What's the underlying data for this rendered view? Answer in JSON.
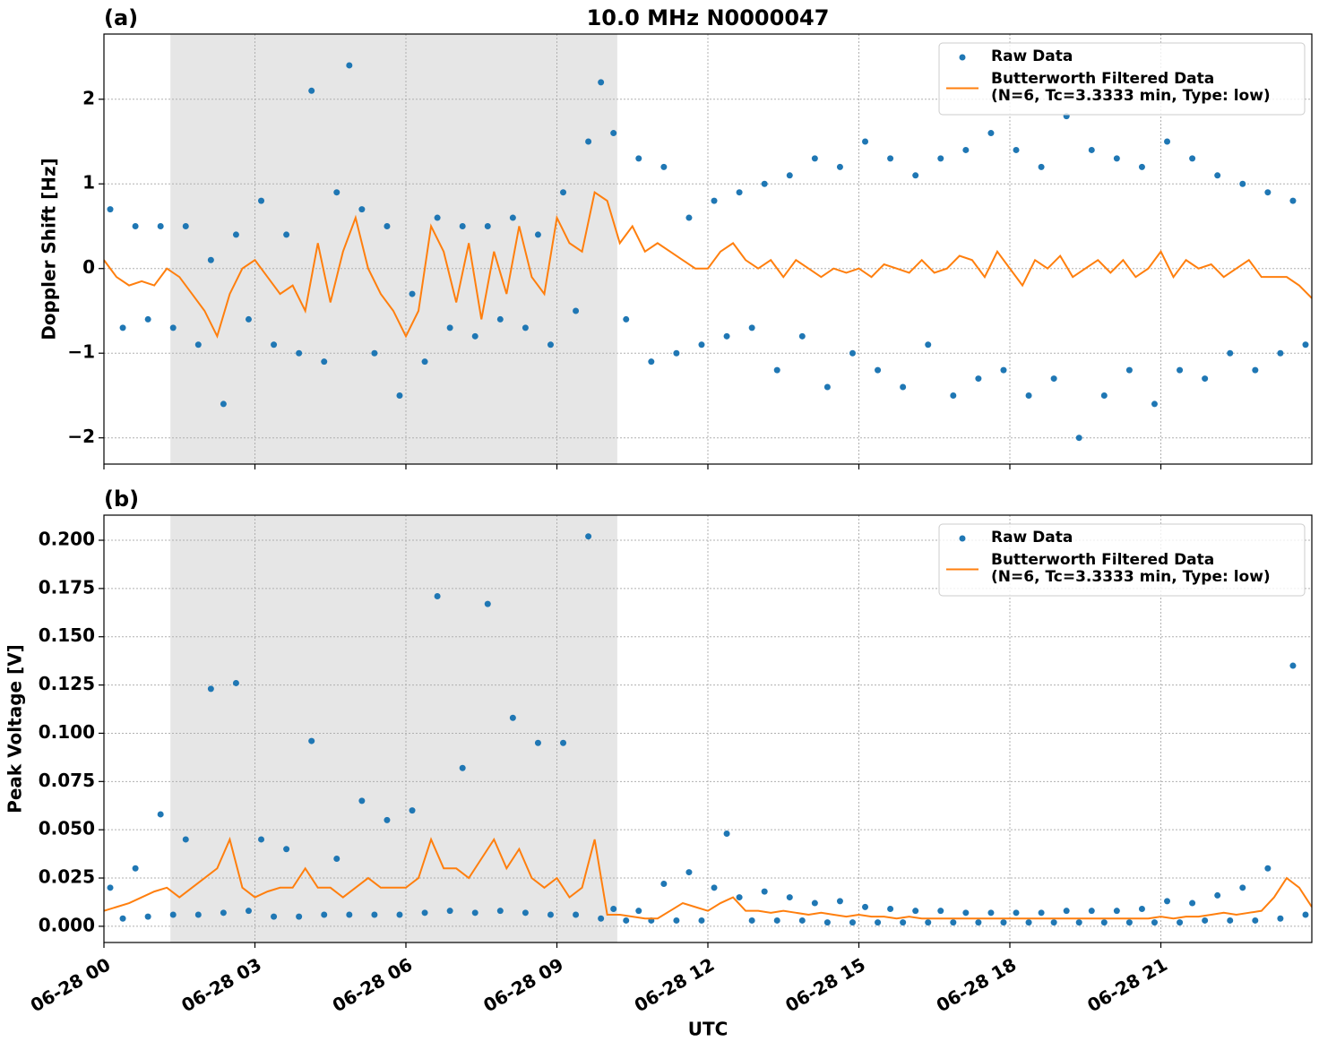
{
  "chart_data": [
    {
      "type": "line",
      "title": "10.0 MHz N0000047",
      "panel_label": "(a)",
      "ylabel": "Doppler Shift [Hz]",
      "xlim": [
        0,
        24
      ],
      "xticks": [
        0,
        3,
        6,
        9,
        12,
        15,
        18,
        21
      ],
      "ylim": [
        -2.31,
        2.77
      ],
      "yticks": [
        {
          "value": -2,
          "label": "−2"
        },
        {
          "value": -1,
          "label": "−1"
        },
        0,
        1,
        2
      ],
      "grid": true,
      "legend": "upper right",
      "shaded_span": [
        1.32,
        10.2
      ],
      "series": [
        {
          "name": "Raw Data",
          "type": "scatter",
          "color": "#1f77b4",
          "x": [
            0.125,
            0.375,
            0.625,
            0.875,
            1.125,
            1.375,
            1.625,
            1.875,
            2.125,
            2.375,
            2.625,
            2.875,
            3.125,
            3.375,
            3.625,
            3.875,
            4.125,
            4.375,
            4.625,
            4.875,
            5.125,
            5.375,
            5.625,
            5.875,
            6.125,
            6.375,
            6.625,
            6.875,
            7.125,
            7.375,
            7.625,
            7.875,
            8.125,
            8.375,
            8.625,
            8.875,
            9.125,
            9.375,
            9.625,
            9.875,
            10.125,
            10.375,
            10.625,
            10.875,
            11.125,
            11.375,
            11.625,
            11.875,
            12.125,
            12.375,
            12.625,
            12.875,
            13.125,
            13.375,
            13.625,
            13.875,
            14.125,
            14.375,
            14.625,
            14.875,
            15.125,
            15.375,
            15.625,
            15.875,
            16.125,
            16.375,
            16.625,
            16.875,
            17.125,
            17.375,
            17.625,
            17.875,
            18.125,
            18.375,
            18.625,
            18.875,
            19.125,
            19.375,
            19.625,
            19.875,
            20.125,
            20.375,
            20.625,
            20.875,
            21.125,
            21.375,
            21.625,
            21.875,
            22.125,
            22.375,
            22.625,
            22.875,
            23.125,
            23.375,
            23.625,
            23.875
          ],
          "values": [
            0.7,
            -0.7,
            0.5,
            -0.6,
            0.5,
            -0.7,
            0.5,
            -0.9,
            0.1,
            -1.6,
            0.4,
            -0.6,
            0.8,
            -0.9,
            0.4,
            -1.0,
            2.1,
            -1.1,
            0.9,
            2.4,
            0.7,
            -1.0,
            0.5,
            -1.5,
            -0.3,
            -1.1,
            0.6,
            -0.7,
            0.5,
            -0.8,
            0.5,
            -0.6,
            0.6,
            -0.7,
            0.4,
            -0.9,
            0.9,
            -0.5,
            1.5,
            2.2,
            1.6,
            -0.6,
            1.3,
            -1.1,
            1.2,
            -1.0,
            0.6,
            -0.9,
            0.8,
            -0.8,
            0.9,
            -0.7,
            1.0,
            -1.2,
            1.1,
            -0.8,
            1.3,
            -1.4,
            1.2,
            -1.0,
            1.5,
            -1.2,
            1.3,
            -1.4,
            1.1,
            -0.9,
            1.3,
            -1.5,
            1.4,
            -1.3,
            1.6,
            -1.2,
            1.4,
            -1.5,
            1.2,
            -1.3,
            1.8,
            -2.0,
            1.4,
            -1.5,
            1.3,
            -1.2,
            1.2,
            -1.6,
            1.5,
            -1.2,
            1.3,
            -1.3,
            1.1,
            -1.0,
            1.0,
            -1.2,
            0.9,
            -1.0,
            0.8,
            -0.9
          ]
        },
        {
          "name": "Butterworth Filtered Data\n(N=6, Tc=3.3333 min, Type: low)",
          "type": "line",
          "color": "#ff7f0e",
          "x": [
            0,
            0.25,
            0.5,
            0.75,
            1,
            1.25,
            1.5,
            1.75,
            2,
            2.25,
            2.5,
            2.75,
            3,
            3.25,
            3.5,
            3.75,
            4,
            4.25,
            4.5,
            4.75,
            5,
            5.25,
            5.5,
            5.75,
            6,
            6.25,
            6.5,
            6.75,
            7,
            7.25,
            7.5,
            7.75,
            8,
            8.25,
            8.5,
            8.75,
            9,
            9.25,
            9.5,
            9.75,
            10,
            10.25,
            10.5,
            10.75,
            11,
            11.25,
            11.5,
            11.75,
            12,
            12.25,
            12.5,
            12.75,
            13,
            13.25,
            13.5,
            13.75,
            14,
            14.25,
            14.5,
            14.75,
            15,
            15.25,
            15.5,
            15.75,
            16,
            16.25,
            16.5,
            16.75,
            17,
            17.25,
            17.5,
            17.75,
            18,
            18.25,
            18.5,
            18.75,
            19,
            19.25,
            19.5,
            19.75,
            20,
            20.25,
            20.5,
            20.75,
            21,
            21.25,
            21.5,
            21.75,
            22,
            22.25,
            22.5,
            22.75,
            23,
            23.25,
            23.5,
            23.75,
            24
          ],
          "values": [
            0.1,
            -0.1,
            -0.2,
            -0.15,
            -0.2,
            0.0,
            -0.1,
            -0.3,
            -0.5,
            -0.8,
            -0.3,
            0.0,
            0.1,
            -0.1,
            -0.3,
            -0.2,
            -0.5,
            0.3,
            -0.4,
            0.2,
            0.6,
            0.0,
            -0.3,
            -0.5,
            -0.8,
            -0.5,
            0.5,
            0.2,
            -0.4,
            0.3,
            -0.6,
            0.2,
            -0.3,
            0.5,
            -0.1,
            -0.3,
            0.6,
            0.3,
            0.2,
            0.9,
            0.8,
            0.3,
            0.5,
            0.2,
            0.3,
            0.2,
            0.1,
            0.0,
            0.0,
            0.2,
            0.3,
            0.1,
            0.0,
            0.1,
            -0.1,
            0.1,
            0.0,
            -0.1,
            0.0,
            -0.05,
            0.0,
            -0.1,
            0.05,
            0.0,
            -0.05,
            0.1,
            -0.05,
            0.0,
            0.15,
            0.1,
            -0.1,
            0.2,
            0.0,
            -0.2,
            0.1,
            0.0,
            0.15,
            -0.1,
            0.0,
            0.1,
            -0.05,
            0.1,
            -0.1,
            0.0,
            0.2,
            -0.1,
            0.1,
            0.0,
            0.05,
            -0.1,
            0.0,
            0.1,
            -0.1,
            -0.1,
            -0.1,
            -0.2,
            -0.35
          ]
        }
      ]
    },
    {
      "type": "line",
      "panel_label": "(b)",
      "ylabel": "Peak Voltage [V]",
      "xlabel": "UTC",
      "xlim": [
        0,
        24
      ],
      "xticks": [
        {
          "value": 0,
          "label": "06-28 00"
        },
        {
          "value": 3,
          "label": "06-28 03"
        },
        {
          "value": 6,
          "label": "06-28 06"
        },
        {
          "value": 9,
          "label": "06-28 09"
        },
        {
          "value": 12,
          "label": "06-28 12"
        },
        {
          "value": 15,
          "label": "06-28 15"
        },
        {
          "value": 18,
          "label": "06-28 18"
        },
        {
          "value": 21,
          "label": "06-28 21"
        }
      ],
      "ylim": [
        -0.0084,
        0.213
      ],
      "yticks": [
        {
          "value": 0,
          "label": "0.000"
        },
        {
          "value": 0.025,
          "label": "0.025"
        },
        {
          "value": 0.05,
          "label": "0.050"
        },
        {
          "value": 0.075,
          "label": "0.075"
        },
        {
          "value": 0.1,
          "label": "0.100"
        },
        {
          "value": 0.125,
          "label": "0.125"
        },
        {
          "value": 0.15,
          "label": "0.150"
        },
        {
          "value": 0.175,
          "label": "0.175"
        },
        {
          "value": 0.2,
          "label": "0.200"
        }
      ],
      "grid": true,
      "legend": "upper right",
      "shaded_span": [
        1.32,
        10.2
      ],
      "series": [
        {
          "name": "Raw Data",
          "type": "scatter",
          "color": "#1f77b4",
          "x": [
            0.125,
            0.375,
            0.625,
            0.875,
            1.125,
            1.375,
            1.625,
            1.875,
            2.125,
            2.375,
            2.625,
            2.875,
            3.125,
            3.375,
            3.625,
            3.875,
            4.125,
            4.375,
            4.625,
            4.875,
            5.125,
            5.375,
            5.625,
            5.875,
            6.125,
            6.375,
            6.625,
            6.875,
            7.125,
            7.375,
            7.625,
            7.875,
            8.125,
            8.375,
            8.625,
            8.875,
            9.125,
            9.375,
            9.625,
            9.875,
            10.125,
            10.375,
            10.625,
            10.875,
            11.125,
            11.375,
            11.625,
            11.875,
            12.125,
            12.375,
            12.625,
            12.875,
            13.125,
            13.375,
            13.625,
            13.875,
            14.125,
            14.375,
            14.625,
            14.875,
            15.125,
            15.375,
            15.625,
            15.875,
            16.125,
            16.375,
            16.625,
            16.875,
            17.125,
            17.375,
            17.625,
            17.875,
            18.125,
            18.375,
            18.625,
            18.875,
            19.125,
            19.375,
            19.625,
            19.875,
            20.125,
            20.375,
            20.625,
            20.875,
            21.125,
            21.375,
            21.625,
            21.875,
            22.125,
            22.375,
            22.625,
            22.875,
            23.125,
            23.375,
            23.625,
            23.875
          ],
          "values": [
            0.02,
            0.004,
            0.03,
            0.005,
            0.058,
            0.006,
            0.045,
            0.006,
            0.123,
            0.007,
            0.126,
            0.008,
            0.045,
            0.005,
            0.04,
            0.005,
            0.096,
            0.006,
            0.035,
            0.006,
            0.065,
            0.006,
            0.055,
            0.006,
            0.06,
            0.007,
            0.171,
            0.008,
            0.082,
            0.007,
            0.167,
            0.008,
            0.108,
            0.007,
            0.095,
            0.006,
            0.095,
            0.006,
            0.202,
            0.004,
            0.009,
            0.003,
            0.008,
            0.003,
            0.022,
            0.003,
            0.028,
            0.003,
            0.02,
            0.048,
            0.015,
            0.003,
            0.018,
            0.003,
            0.015,
            0.003,
            0.012,
            0.002,
            0.013,
            0.002,
            0.01,
            0.002,
            0.009,
            0.002,
            0.008,
            0.002,
            0.008,
            0.002,
            0.007,
            0.002,
            0.007,
            0.002,
            0.007,
            0.002,
            0.007,
            0.002,
            0.008,
            0.002,
            0.008,
            0.002,
            0.008,
            0.002,
            0.009,
            0.002,
            0.013,
            0.002,
            0.012,
            0.003,
            0.016,
            0.003,
            0.02,
            0.003,
            0.03,
            0.004,
            0.135,
            0.006
          ]
        },
        {
          "name": "Butterworth Filtered Data\n(N=6, Tc=3.3333 min, Type: low)",
          "type": "line",
          "color": "#ff7f0e",
          "x": [
            0,
            0.25,
            0.5,
            0.75,
            1,
            1.25,
            1.5,
            1.75,
            2,
            2.25,
            2.5,
            2.75,
            3,
            3.25,
            3.5,
            3.75,
            4,
            4.25,
            4.5,
            4.75,
            5,
            5.25,
            5.5,
            5.75,
            6,
            6.25,
            6.5,
            6.75,
            7,
            7.25,
            7.5,
            7.75,
            8,
            8.25,
            8.5,
            8.75,
            9,
            9.25,
            9.5,
            9.75,
            10,
            10.25,
            10.5,
            10.75,
            11,
            11.25,
            11.5,
            11.75,
            12,
            12.25,
            12.5,
            12.75,
            13,
            13.25,
            13.5,
            13.75,
            14,
            14.25,
            14.5,
            14.75,
            15,
            15.25,
            15.5,
            15.75,
            16,
            16.25,
            16.5,
            16.75,
            17,
            17.25,
            17.5,
            17.75,
            18,
            18.25,
            18.5,
            18.75,
            19,
            19.25,
            19.5,
            19.75,
            20,
            20.25,
            20.5,
            20.75,
            21,
            21.25,
            21.5,
            21.75,
            22,
            22.25,
            22.5,
            22.75,
            23,
            23.25,
            23.5,
            23.75,
            24
          ],
          "values": [
            0.008,
            0.01,
            0.012,
            0.015,
            0.018,
            0.02,
            0.015,
            0.02,
            0.025,
            0.03,
            0.045,
            0.02,
            0.015,
            0.018,
            0.02,
            0.02,
            0.03,
            0.02,
            0.02,
            0.015,
            0.02,
            0.025,
            0.02,
            0.02,
            0.02,
            0.025,
            0.045,
            0.03,
            0.03,
            0.025,
            0.035,
            0.045,
            0.03,
            0.04,
            0.025,
            0.02,
            0.025,
            0.015,
            0.02,
            0.045,
            0.006,
            0.006,
            0.005,
            0.004,
            0.004,
            0.008,
            0.012,
            0.01,
            0.008,
            0.012,
            0.015,
            0.008,
            0.008,
            0.007,
            0.008,
            0.007,
            0.006,
            0.007,
            0.006,
            0.005,
            0.006,
            0.005,
            0.005,
            0.004,
            0.005,
            0.004,
            0.004,
            0.004,
            0.004,
            0.004,
            0.004,
            0.004,
            0.004,
            0.004,
            0.004,
            0.004,
            0.004,
            0.004,
            0.004,
            0.004,
            0.004,
            0.004,
            0.004,
            0.004,
            0.005,
            0.004,
            0.005,
            0.005,
            0.006,
            0.007,
            0.006,
            0.007,
            0.008,
            0.015,
            0.025,
            0.02,
            0.01
          ]
        }
      ]
    }
  ]
}
